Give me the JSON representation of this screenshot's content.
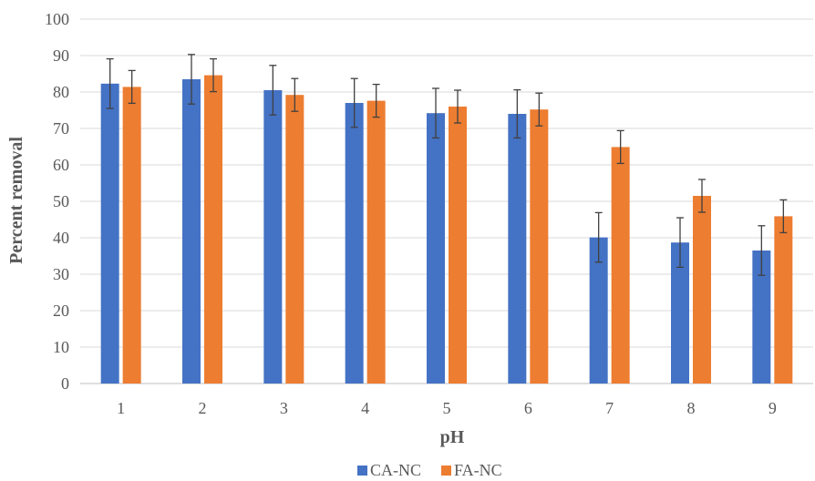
{
  "chart_data": {
    "type": "bar",
    "title": "",
    "xlabel": "pH",
    "ylabel": "Percent removal",
    "categories": [
      "1",
      "2",
      "3",
      "4",
      "5",
      "6",
      "7",
      "8",
      "9"
    ],
    "ylim": [
      0,
      100
    ],
    "yticks": [
      "0",
      "10",
      "20",
      "30",
      "40",
      "50",
      "60",
      "70",
      "80",
      "90",
      "100"
    ],
    "grid": true,
    "legend_position": "bottom",
    "series": [
      {
        "name": "CA-NC",
        "color": "#4472C4",
        "values": [
          82.3,
          83.5,
          80.5,
          77.0,
          74.2,
          74.0,
          40.1,
          38.7,
          36.5
        ],
        "errors": [
          6.8,
          6.8,
          6.8,
          6.7,
          6.8,
          6.6,
          6.8,
          6.8,
          6.8
        ]
      },
      {
        "name": "FA-NC",
        "color": "#ED7D31",
        "values": [
          81.4,
          84.6,
          79.2,
          77.6,
          76.0,
          75.2,
          64.9,
          51.5,
          45.9
        ],
        "errors": [
          4.5,
          4.5,
          4.5,
          4.5,
          4.5,
          4.5,
          4.5,
          4.5,
          4.5
        ]
      }
    ]
  }
}
